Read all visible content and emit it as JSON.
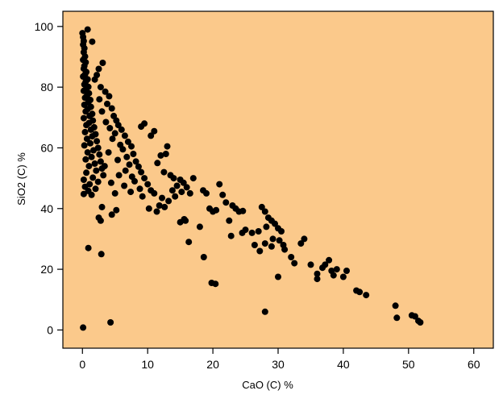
{
  "chart_data": {
    "type": "scatter",
    "title": "",
    "xlabel": "CaO  (C) %",
    "ylabel": "SiO2  (C) %",
    "xlim": [
      -3,
      63
    ],
    "ylim": [
      -6,
      105
    ],
    "xticks": [
      0,
      10,
      20,
      30,
      40,
      50,
      60
    ],
    "yticks": [
      0,
      20,
      40,
      60,
      80,
      100
    ],
    "plot_background": "#fbc98b",
    "point_color": "#000000",
    "grid": false,
    "legend": "none",
    "points": [
      [
        0.0,
        97.8
      ],
      [
        0.1,
        96.5
      ],
      [
        0.2,
        95.2
      ],
      [
        0.1,
        94.0
      ],
      [
        0.3,
        92.8
      ],
      [
        0.2,
        91.5
      ],
      [
        0.4,
        90.1
      ],
      [
        0.1,
        89.0
      ],
      [
        0.5,
        88.2
      ],
      [
        0.3,
        87.0
      ],
      [
        0.2,
        86.1
      ],
      [
        0.6,
        85.0
      ],
      [
        0.4,
        84.2
      ],
      [
        0.1,
        83.5
      ],
      [
        0.8,
        82.6
      ],
      [
        0.5,
        81.8
      ],
      [
        0.3,
        80.9
      ],
      [
        0.9,
        80.1
      ],
      [
        0.6,
        79.5
      ],
      [
        0.2,
        78.8
      ],
      [
        1.0,
        78.0
      ],
      [
        0.7,
        77.2
      ],
      [
        0.4,
        76.5
      ],
      [
        1.2,
        75.8
      ],
      [
        0.9,
        75.0
      ],
      [
        0.3,
        74.2
      ],
      [
        1.3,
        73.5
      ],
      [
        0.8,
        72.8
      ],
      [
        0.5,
        72.0
      ],
      [
        1.5,
        71.2
      ],
      [
        1.1,
        70.5
      ],
      [
        0.2,
        69.8
      ],
      [
        1.6,
        69.0
      ],
      [
        1.0,
        68.2
      ],
      [
        0.6,
        67.5
      ],
      [
        1.8,
        66.8
      ],
      [
        1.3,
        66.0
      ],
      [
        0.4,
        65.2
      ],
      [
        2.0,
        64.5
      ],
      [
        1.5,
        63.8
      ],
      [
        0.7,
        63.0
      ],
      [
        2.2,
        62.2
      ],
      [
        1.2,
        61.5
      ],
      [
        0.3,
        60.8
      ],
      [
        2.4,
        60.0
      ],
      [
        1.7,
        59.2
      ],
      [
        0.8,
        58.5
      ],
      [
        2.6,
        57.8
      ],
      [
        1.4,
        57.0
      ],
      [
        0.5,
        56.2
      ],
      [
        2.8,
        55.5
      ],
      [
        1.9,
        54.8
      ],
      [
        1.0,
        54.0
      ],
      [
        3.0,
        53.2
      ],
      [
        2.1,
        52.5
      ],
      [
        0.6,
        51.8
      ],
      [
        3.2,
        51.0
      ],
      [
        1.6,
        50.2
      ],
      [
        0.2,
        49.5
      ],
      [
        2.4,
        48.8
      ],
      [
        1.1,
        48.0
      ],
      [
        0.4,
        47.2
      ],
      [
        2.0,
        46.5
      ],
      [
        0.9,
        45.8
      ],
      [
        0.2,
        44.8
      ],
      [
        1.4,
        44.5
      ],
      [
        0.8,
        99.0
      ],
      [
        1.5,
        95.0
      ],
      [
        2.5,
        86.0
      ],
      [
        3.1,
        88.0
      ],
      [
        2.2,
        84.0
      ],
      [
        1.9,
        82.5
      ],
      [
        2.8,
        80.0
      ],
      [
        3.5,
        78.5
      ],
      [
        4.1,
        77.0
      ],
      [
        2.6,
        76.0
      ],
      [
        3.8,
        74.5
      ],
      [
        4.5,
        73.0
      ],
      [
        3.0,
        72.0
      ],
      [
        4.8,
        70.5
      ],
      [
        5.2,
        69.0
      ],
      [
        3.6,
        68.5
      ],
      [
        5.5,
        67.5
      ],
      [
        4.2,
        66.5
      ],
      [
        6.0,
        66.0
      ],
      [
        5.0,
        64.8
      ],
      [
        6.5,
        64.0
      ],
      [
        4.6,
        63.0
      ],
      [
        7.0,
        62.0
      ],
      [
        5.8,
        61.0
      ],
      [
        7.5,
        60.5
      ],
      [
        6.2,
        59.5
      ],
      [
        4.0,
        58.5
      ],
      [
        7.8,
        58.0
      ],
      [
        6.8,
        57.0
      ],
      [
        5.4,
        56.0
      ],
      [
        8.2,
        55.5
      ],
      [
        7.2,
        54.5
      ],
      [
        3.4,
        54.0
      ],
      [
        8.6,
        53.8
      ],
      [
        6.6,
        52.5
      ],
      [
        9.0,
        52.0
      ],
      [
        5.6,
        51.0
      ],
      [
        7.6,
        50.5
      ],
      [
        9.5,
        50.0
      ],
      [
        8.0,
        49.0
      ],
      [
        4.4,
        48.5
      ],
      [
        10.0,
        48.0
      ],
      [
        6.4,
        47.5
      ],
      [
        8.8,
        46.5
      ],
      [
        10.5,
        46.0
      ],
      [
        7.4,
        45.5
      ],
      [
        5.0,
        45.0
      ],
      [
        11.0,
        45.0
      ],
      [
        9.2,
        44.0
      ],
      [
        3.0,
        40.5
      ],
      [
        2.5,
        37.0
      ],
      [
        2.8,
        36.0
      ],
      [
        4.5,
        38.0
      ],
      [
        5.2,
        39.5
      ],
      [
        0.9,
        27.0
      ],
      [
        2.9,
        25.0
      ],
      [
        0.1,
        0.8
      ],
      [
        4.3,
        2.5
      ],
      [
        9.0,
        67.0
      ],
      [
        9.5,
        68.0
      ],
      [
        10.5,
        64.0
      ],
      [
        11.0,
        65.5
      ],
      [
        13.0,
        60.5
      ],
      [
        12.0,
        57.5
      ],
      [
        12.8,
        58.0
      ],
      [
        11.5,
        55.0
      ],
      [
        12.5,
        52.0
      ],
      [
        13.5,
        51.0
      ],
      [
        14.0,
        50.0
      ],
      [
        15.0,
        49.5
      ],
      [
        15.5,
        48.5
      ],
      [
        14.5,
        47.5
      ],
      [
        16.0,
        47.0
      ],
      [
        13.8,
        46.0
      ],
      [
        15.2,
        45.5
      ],
      [
        16.5,
        45.0
      ],
      [
        14.2,
        44.0
      ],
      [
        12.2,
        43.5
      ],
      [
        13.2,
        42.5
      ],
      [
        11.8,
        41.0
      ],
      [
        10.2,
        40.0
      ],
      [
        11.4,
        39.0
      ],
      [
        12.6,
        40.5
      ],
      [
        15.8,
        36.0
      ],
      [
        15.0,
        35.5
      ],
      [
        15.6,
        36.5
      ],
      [
        16.3,
        29.0
      ],
      [
        17.0,
        50.0
      ],
      [
        18.0,
        34.0
      ],
      [
        18.5,
        46.0
      ],
      [
        19.0,
        45.0
      ],
      [
        19.5,
        40.0
      ],
      [
        20.0,
        39.0
      ],
      [
        20.5,
        39.5
      ],
      [
        21.0,
        48.0
      ],
      [
        21.5,
        44.5
      ],
      [
        22.0,
        42.0
      ],
      [
        22.5,
        36.0
      ],
      [
        23.0,
        41.0
      ],
      [
        23.5,
        40.0
      ],
      [
        24.0,
        39.0
      ],
      [
        24.5,
        32.0
      ],
      [
        25.0,
        33.0
      ],
      [
        26.0,
        32.0
      ],
      [
        27.0,
        32.5
      ],
      [
        27.5,
        40.5
      ],
      [
        28.0,
        39.0
      ],
      [
        28.5,
        37.0
      ],
      [
        29.0,
        36.0
      ],
      [
        29.5,
        35.0
      ],
      [
        30.0,
        33.5
      ],
      [
        30.5,
        32.5
      ],
      [
        28.2,
        34.0
      ],
      [
        29.2,
        30.0
      ],
      [
        30.2,
        29.5
      ],
      [
        30.8,
        28.0
      ],
      [
        29.0,
        27.5
      ],
      [
        28.0,
        28.5
      ],
      [
        27.2,
        26.0
      ],
      [
        31.0,
        26.5
      ],
      [
        32.0,
        24.0
      ],
      [
        32.5,
        22.0
      ],
      [
        33.5,
        28.5
      ],
      [
        34.0,
        30.0
      ],
      [
        35.0,
        21.5
      ],
      [
        36.0,
        18.5
      ],
      [
        36.0,
        16.8
      ],
      [
        36.8,
        20.5
      ],
      [
        37.2,
        21.5
      ],
      [
        37.8,
        23.0
      ],
      [
        38.2,
        19.5
      ],
      [
        38.5,
        18.0
      ],
      [
        39.0,
        20.0
      ],
      [
        40.0,
        17.5
      ],
      [
        40.5,
        19.5
      ],
      [
        42.0,
        13.0
      ],
      [
        42.5,
        12.5
      ],
      [
        43.5,
        11.5
      ],
      [
        48.0,
        8.0
      ],
      [
        48.2,
        4.0
      ],
      [
        50.5,
        4.8
      ],
      [
        51.0,
        4.5
      ],
      [
        51.5,
        3.0
      ],
      [
        51.8,
        2.5
      ],
      [
        28.0,
        6.0
      ],
      [
        30.0,
        17.5
      ],
      [
        19.8,
        15.5
      ],
      [
        20.4,
        15.2
      ],
      [
        18.6,
        24.0
      ],
      [
        22.8,
        31.0
      ],
      [
        24.6,
        39.2
      ],
      [
        26.4,
        28.0
      ]
    ]
  }
}
